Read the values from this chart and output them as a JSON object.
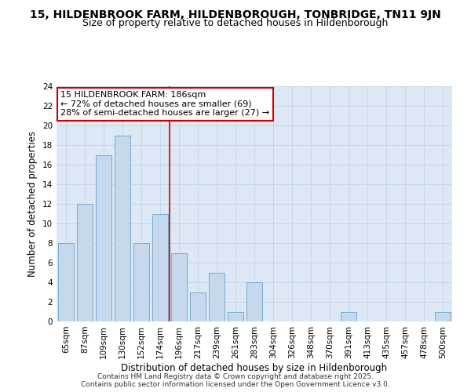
{
  "title_line1": "15, HILDENBROOK FARM, HILDENBOROUGH, TONBRIDGE, TN11 9JN",
  "title_line2": "Size of property relative to detached houses in Hildenborough",
  "xlabel": "Distribution of detached houses by size in Hildenborough",
  "ylabel": "Number of detached properties",
  "categories": [
    "65sqm",
    "87sqm",
    "109sqm",
    "130sqm",
    "152sqm",
    "174sqm",
    "196sqm",
    "217sqm",
    "239sqm",
    "261sqm",
    "283sqm",
    "304sqm",
    "326sqm",
    "348sqm",
    "370sqm",
    "391sqm",
    "413sqm",
    "435sqm",
    "457sqm",
    "478sqm",
    "500sqm"
  ],
  "values": [
    8,
    12,
    17,
    19,
    8,
    11,
    7,
    3,
    5,
    1,
    4,
    0,
    0,
    0,
    0,
    1,
    0,
    0,
    0,
    0,
    1
  ],
  "bar_color": "#c5d8ed",
  "bar_edge_color": "#7aacce",
  "grid_color": "#c8d8e8",
  "background_color": "#dce8f4",
  "vline_x": 5.5,
  "vline_color": "#cc0000",
  "annotation_text": "15 HILDENBROOK FARM: 186sqm\n← 72% of detached houses are smaller (69)\n28% of semi-detached houses are larger (27) →",
  "annotation_box_facecolor": "#ffffff",
  "annotation_box_edgecolor": "#cc0000",
  "ylim": [
    0,
    24
  ],
  "yticks": [
    0,
    2,
    4,
    6,
    8,
    10,
    12,
    14,
    16,
    18,
    20,
    22,
    24
  ],
  "footnote": "Contains HM Land Registry data © Crown copyright and database right 2025.\nContains public sector information licensed under the Open Government Licence v3.0.",
  "title_fontsize": 10,
  "subtitle_fontsize": 9,
  "tick_fontsize": 7.5,
  "label_fontsize": 8.5,
  "annotation_fontsize": 8,
  "footnote_fontsize": 6.5
}
